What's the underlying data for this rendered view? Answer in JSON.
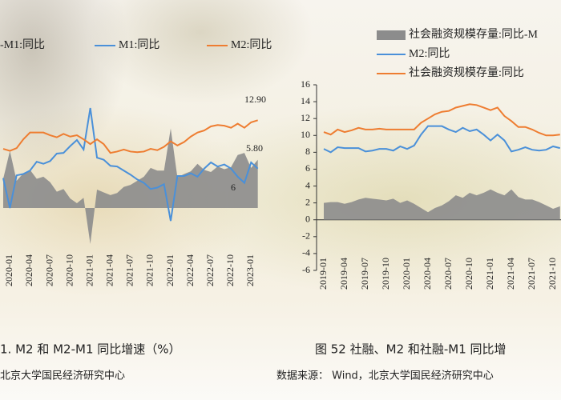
{
  "chart_data": [
    {
      "type": "line",
      "caption": "1. M2 和 M2-M1 同比增速（%）",
      "source": "北京大学国民经济研究中心",
      "categories": [
        null,
        "2020-01",
        null,
        null,
        "2020-04",
        null,
        null,
        "2020-07",
        null,
        null,
        "2020-10",
        null,
        null,
        "2021-01",
        null,
        null,
        "2021-04",
        null,
        null,
        "2021-07",
        null,
        null,
        "2021-10",
        null,
        null,
        "2022-01",
        null,
        null,
        "2022-04",
        null,
        null,
        "2022-07",
        null,
        null,
        "2022-10",
        null,
        null,
        "2023-01",
        null
      ],
      "ylim": [
        -6,
        16
      ],
      "series": [
        {
          "name": "-M1:同比",
          "kind": "area",
          "color": "#8c8c8c",
          "values": [
            4.3,
            8.4,
            4.0,
            5.1,
            5.6,
            4.3,
            4.6,
            3.8,
            2.4,
            2.8,
            1.4,
            0.7,
            1.5,
            -5.3,
            2.7,
            2.3,
            1.9,
            2.2,
            3.1,
            3.4,
            4.0,
            4.6,
            5.9,
            5.5,
            5.5,
            11.7,
            4.5,
            5.0,
            5.4,
            6.5,
            5.6,
            5.3,
            6.1,
            5.7,
            6.0,
            7.8,
            8.1,
            5.9,
            7.1
          ]
        },
        {
          "name": "M1:同比",
          "kind": "line",
          "color": "#4a90d9",
          "values": [
            4.4,
            0.0,
            4.8,
            5.0,
            5.5,
            6.8,
            6.5,
            6.9,
            8.0,
            8.1,
            9.1,
            10.0,
            8.6,
            14.7,
            7.4,
            7.1,
            6.2,
            6.1,
            5.5,
            4.9,
            4.2,
            3.7,
            2.8,
            3.0,
            3.5,
            -1.9,
            4.7,
            4.7,
            5.1,
            4.6,
            5.8,
            6.7,
            6.1,
            6.4,
            5.8,
            4.6,
            3.7,
            6.7,
            5.8
          ]
        },
        {
          "name": "M2:同比",
          "kind": "line",
          "color": "#ee7d31",
          "values": [
            8.7,
            8.4,
            8.8,
            10.1,
            11.1,
            11.1,
            11.1,
            10.7,
            10.4,
            10.9,
            10.5,
            10.7,
            10.1,
            9.4,
            10.1,
            9.4,
            8.1,
            8.3,
            8.6,
            8.3,
            8.2,
            8.3,
            8.7,
            8.5,
            9.0,
            9.8,
            9.2,
            9.7,
            10.5,
            11.1,
            11.4,
            12.0,
            12.2,
            12.1,
            11.8,
            12.4,
            11.8,
            12.6,
            12.9
          ]
        }
      ],
      "annotations": [
        "12.90",
        "5.80",
        "6"
      ]
    },
    {
      "type": "line",
      "caption": "图 52 社融、M2 和社融-M1 同比增",
      "source": "数据来源： Wind，北京大学国民经济研究中心",
      "categories": [
        "2019-01",
        null,
        null,
        "2019-04",
        null,
        null,
        "2019-07",
        null,
        null,
        "2019-10",
        null,
        null,
        "2020-01",
        null,
        null,
        "2020-04",
        null,
        null,
        "2020-07",
        null,
        null,
        "2020-10",
        null,
        null,
        "2021-01",
        null,
        null,
        "2021-04",
        null,
        null,
        "2021-07",
        null,
        null,
        "2021-10",
        null
      ],
      "ylim": [
        -6,
        16
      ],
      "yticks": [
        -6,
        -4,
        -2,
        0,
        2,
        4,
        6,
        8,
        10,
        12,
        14,
        16
      ],
      "series": [
        {
          "name": "社会融资规模存量:同比-M",
          "kind": "area",
          "color": "#8c8c8c",
          "values": [
            2.0,
            2.1,
            2.1,
            1.9,
            2.1,
            2.4,
            2.6,
            2.5,
            2.4,
            2.3,
            2.5,
            2.0,
            2.3,
            1.9,
            1.4,
            0.9,
            1.4,
            1.7,
            2.2,
            2.9,
            2.6,
            3.2,
            2.9,
            3.2,
            3.6,
            3.2,
            2.9,
            3.6,
            2.7,
            2.4,
            2.4,
            2.1,
            1.7,
            1.3,
            1.6
          ]
        },
        {
          "name": "M2:同比",
          "kind": "line",
          "color": "#4a90d9",
          "values": [
            8.4,
            8.0,
            8.6,
            8.5,
            8.5,
            8.5,
            8.1,
            8.2,
            8.4,
            8.4,
            8.2,
            8.7,
            8.4,
            8.8,
            10.1,
            11.1,
            11.1,
            11.1,
            10.7,
            10.4,
            10.9,
            10.5,
            10.7,
            10.1,
            9.4,
            10.1,
            9.4,
            8.1,
            8.3,
            8.6,
            8.3,
            8.2,
            8.3,
            8.7,
            8.5
          ]
        },
        {
          "name": "社会融资规模存量:同比",
          "kind": "line",
          "color": "#ee7d31",
          "values": [
            10.4,
            10.1,
            10.7,
            10.4,
            10.6,
            10.9,
            10.7,
            10.7,
            10.8,
            10.7,
            10.7,
            10.7,
            10.7,
            10.7,
            11.5,
            12.0,
            12.5,
            12.8,
            12.9,
            13.3,
            13.5,
            13.7,
            13.6,
            13.3,
            13.0,
            13.3,
            12.3,
            11.7,
            11.0,
            11.0,
            10.7,
            10.3,
            10.0,
            10.0,
            10.1
          ]
        }
      ]
    }
  ]
}
